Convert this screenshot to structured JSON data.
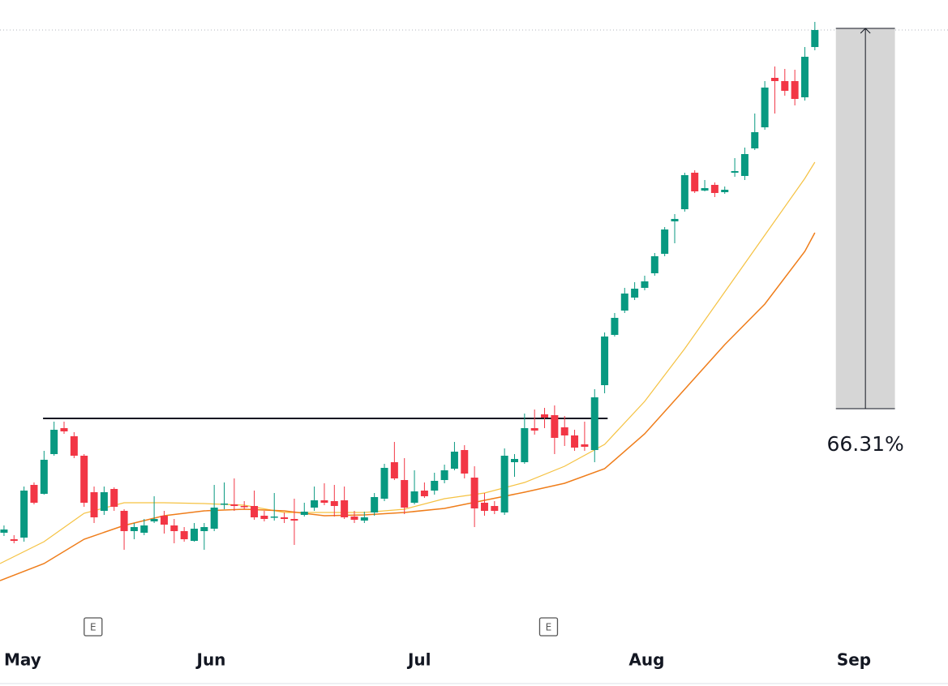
{
  "chart_data": {
    "type": "candlestick",
    "open": [
      55.4,
      54.6,
      54.8,
      61.3,
      60.2,
      65.1,
      68.3,
      67.3,
      64.9,
      60.4,
      58.1,
      60.8,
      58.1,
      55.6,
      55.4,
      56.8,
      57.5,
      56.3,
      55.6,
      54.4,
      55.6,
      55.9,
      58.9,
      58.9,
      58.7,
      58.7,
      57.5,
      57.3,
      57.3,
      57.1,
      57.6,
      58.5,
      59.4,
      59.3,
      59.4,
      57.4,
      56.9,
      57.9,
      59.6,
      64.1,
      61.9,
      59.1,
      60.6,
      60.6,
      61.9,
      63.3,
      65.6,
      62.2,
      59.1,
      58.7,
      57.9,
      64.1,
      64.1,
      68.3,
      70.0,
      69.9,
      68.4,
      67.4,
      66.3,
      65.6,
      73.6,
      79.8,
      82.8,
      84.4,
      85.6,
      87.4,
      89.8,
      93.8,
      95.3,
      99.8,
      97.6,
      98.3,
      97.4,
      99.8,
      99.4,
      102.8,
      105.4,
      111.5,
      111.1,
      111.1,
      109.1,
      115.3
    ],
    "high": [
      56.3,
      55.1,
      61.1,
      61.6,
      65.5,
      69.1,
      69.1,
      67.8,
      65.1,
      61.1,
      61.1,
      61.0,
      58.3,
      56.6,
      57.1,
      59.9,
      58.1,
      57.1,
      56.1,
      56.6,
      56.6,
      61.3,
      61.6,
      62.1,
      59.3,
      60.6,
      58.1,
      60.3,
      57.9,
      59.6,
      59.1,
      61.1,
      61.5,
      61.3,
      61.1,
      58.1,
      58.0,
      60.3,
      63.9,
      66.6,
      64.6,
      63.1,
      61.6,
      62.8,
      63.8,
      66.6,
      66.2,
      63.6,
      60.3,
      59.3,
      65.8,
      65.1,
      70.1,
      70.6,
      70.8,
      71.1,
      69.8,
      68.1,
      69.1,
      73.1,
      80.1,
      82.5,
      85.6,
      86.3,
      87.1,
      89.9,
      93.1,
      94.7,
      99.8,
      100.1,
      98.9,
      98.6,
      98.1,
      101.6,
      102.9,
      107.1,
      111.1,
      112.9,
      112.6,
      112.5,
      115.3,
      118.4
    ],
    "low": [
      55.0,
      54.1,
      54.3,
      58.9,
      60.1,
      64.9,
      67.6,
      64.6,
      58.6,
      56.6,
      57.6,
      58.1,
      53.3,
      54.6,
      55.1,
      56.6,
      55.3,
      54.1,
      54.3,
      54.3,
      53.3,
      55.6,
      58.3,
      58.1,
      58.3,
      57.0,
      56.8,
      56.9,
      56.6,
      53.9,
      57.4,
      58.1,
      58.8,
      57.4,
      57.1,
      56.6,
      56.6,
      57.5,
      59.3,
      61.9,
      57.7,
      58.9,
      59.7,
      60.1,
      61.5,
      63.1,
      62.1,
      56.1,
      57.5,
      57.7,
      57.6,
      62.3,
      63.9,
      67.5,
      68.3,
      65.1,
      66.1,
      65.5,
      65.5,
      64.1,
      72.6,
      79.6,
      82.5,
      84.1,
      85.3,
      87.1,
      89.5,
      91.1,
      95.0,
      97.3,
      97.5,
      96.8,
      97.2,
      99.3,
      98.9,
      102.6,
      105.1,
      107.1,
      109.3,
      108.1,
      108.7,
      114.9
    ],
    "close": [
      55.8,
      54.4,
      60.6,
      59.1,
      64.4,
      68.1,
      67.9,
      64.9,
      59.1,
      57.3,
      60.4,
      58.6,
      55.6,
      56.1,
      56.3,
      57.1,
      56.4,
      55.6,
      54.6,
      55.9,
      56.1,
      58.5,
      59.0,
      58.7,
      58.6,
      57.3,
      57.1,
      57.4,
      57.1,
      56.9,
      58.0,
      59.4,
      59.1,
      58.7,
      57.3,
      57.0,
      57.3,
      59.8,
      63.4,
      62.1,
      58.5,
      60.5,
      59.9,
      61.8,
      63.1,
      65.4,
      62.7,
      58.4,
      58.1,
      58.1,
      64.9,
      64.5,
      68.3,
      68.0,
      69.6,
      67.1,
      67.4,
      65.9,
      66.0,
      72.1,
      79.6,
      81.9,
      84.9,
      85.5,
      86.4,
      89.5,
      92.8,
      94.1,
      99.5,
      97.5,
      97.9,
      97.3,
      97.7,
      100.0,
      102.1,
      104.8,
      110.3,
      111.1,
      109.9,
      108.9,
      114.1,
      117.4
    ],
    "up_color": "#089981",
    "down_color": "#f23645",
    "lines": [
      {
        "color": "#f5c242",
        "x": [
          -0.4,
          4,
          8,
          12,
          16,
          20,
          24,
          28,
          32,
          36,
          40,
          44,
          48,
          52,
          56,
          60,
          64,
          68,
          72,
          76,
          80,
          81
        ],
        "values": [
          51.6,
          54.3,
          57.8,
          59.1,
          59.1,
          59.0,
          58.8,
          57.9,
          57.9,
          57.9,
          58.3,
          59.6,
          60.3,
          61.6,
          63.6,
          66.3,
          71.6,
          78.1,
          85.1,
          92.1,
          99.1,
          101.1
        ]
      },
      {
        "color": "#ef7d1a",
        "x": [
          -0.4,
          4,
          8,
          12,
          16,
          20,
          24,
          28,
          32,
          36,
          40,
          44,
          48,
          52,
          56,
          60,
          64,
          68,
          72,
          76,
          80,
          81
        ],
        "values": [
          49.5,
          51.6,
          54.6,
          56.3,
          57.5,
          58.1,
          58.3,
          58.1,
          57.5,
          57.6,
          57.9,
          58.4,
          59.4,
          60.4,
          61.5,
          63.3,
          67.6,
          73.1,
          78.6,
          83.6,
          90.1,
          92.4
        ]
      }
    ],
    "xlim": [
      -0.4,
      94.3
    ],
    "ylim": [
      36.5,
      121.1
    ],
    "xticks": [
      {
        "value": 1.86,
        "label": "May"
      },
      {
        "value": 20.7,
        "label": "Jun"
      },
      {
        "value": 41.5,
        "label": "Jul"
      },
      {
        "value": 64.2,
        "label": "Aug"
      },
      {
        "value": 84.9,
        "label": "Sep"
      }
    ],
    "earnings": [
      {
        "x": 8.9,
        "label": "E"
      },
      {
        "x": 54.4,
        "label": "E"
      }
    ],
    "level_line": {
      "value": 69.5,
      "x": [
        3.9,
        60.3
      ]
    },
    "last_price_line": 117.4,
    "measure": {
      "from": 70.7,
      "to": 117.6,
      "x": [
        83.1,
        89.0
      ],
      "label": "66.31%"
    }
  }
}
